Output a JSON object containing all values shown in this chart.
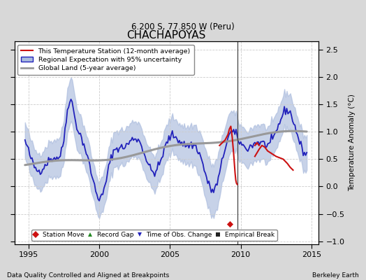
{
  "title": "CHACHAPOYAS",
  "subtitle": "6.200 S, 77.850 W (Peru)",
  "ylabel": "Temperature Anomaly (°C)",
  "xlabel_left": "Data Quality Controlled and Aligned at Breakpoints",
  "xlabel_right": "Berkeley Earth",
  "xlim": [
    1994.0,
    2015.5
  ],
  "ylim": [
    -1.05,
    2.65
  ],
  "yticks": [
    -1,
    -0.5,
    0,
    0.5,
    1,
    1.5,
    2,
    2.5
  ],
  "xticks": [
    1995,
    2000,
    2005,
    2010,
    2015
  ],
  "regional_color": "#2222bb",
  "regional_fill_color": "#aabbdd",
  "station_color": "#cc1111",
  "global_color": "#999999",
  "figure_bg_color": "#d8d8d8",
  "plot_bg_color": "#ffffff",
  "grid_color": "#cccccc",
  "breakpoint_x": 2009.75,
  "station_move_x": 2009.25,
  "station_move_y": -0.68,
  "legend_marker_colors": {
    "station_move": "#cc1111",
    "record_gap": "#228822",
    "obs_change": "#2222bb",
    "empirical_break": "#222222"
  }
}
